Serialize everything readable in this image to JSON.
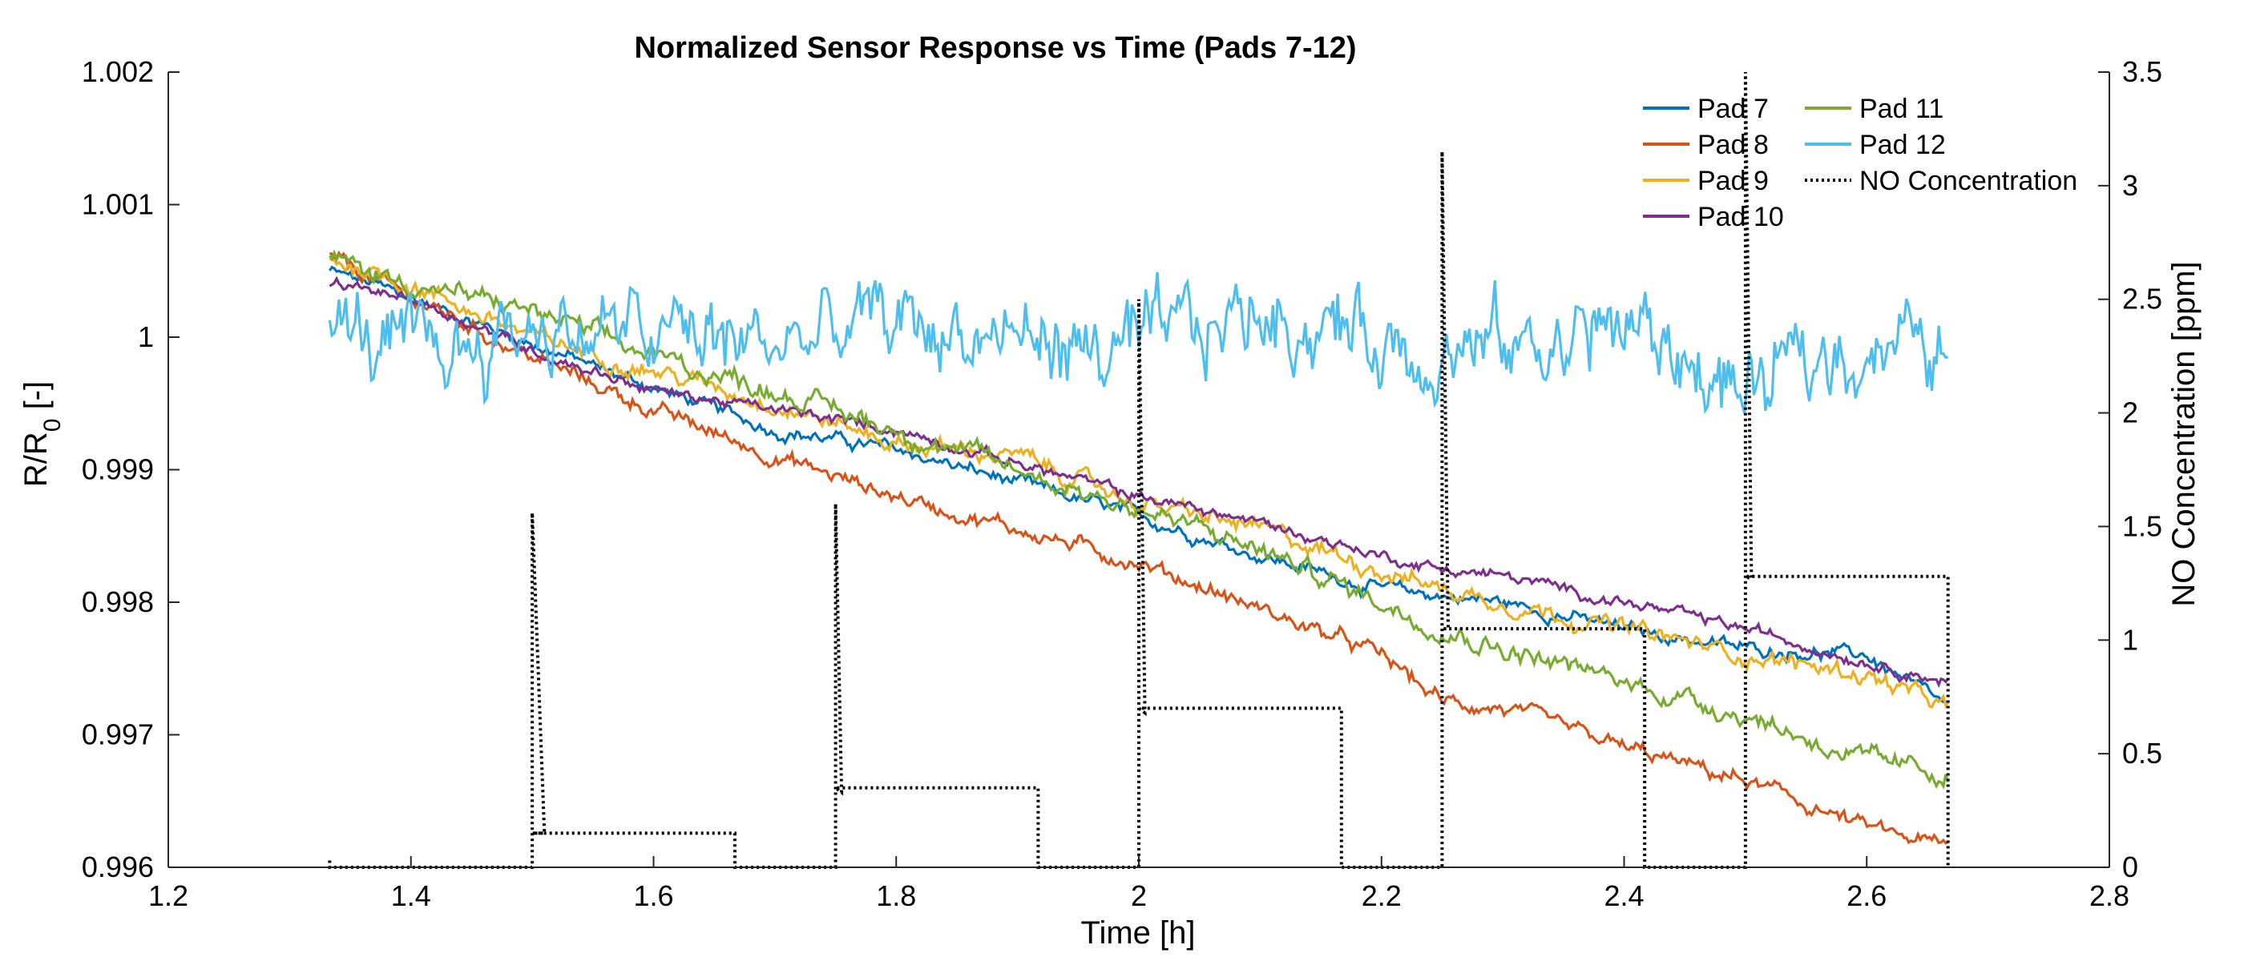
{
  "chart_data": {
    "type": "line",
    "title": "Normalized Sensor Response vs Time (Pads 7-12)",
    "xlabel": "Time [h]",
    "ylabel_left_main": "R/R",
    "ylabel_left_sub": "0",
    "ylabel_left_suffix": " [-]",
    "ylabel_right": "NO Concentration [ppm]",
    "xlim": [
      1.2,
      2.8
    ],
    "ylim_left": [
      0.996,
      1.002
    ],
    "ylim_right": [
      0,
      3.5
    ],
    "x_ticks": [
      "1.2",
      "1.4",
      "1.6",
      "1.8",
      "2",
      "2.2",
      "2.4",
      "2.6",
      "2.8"
    ],
    "y_left_ticks": [
      "0.996",
      "0.997",
      "0.998",
      "0.999",
      "1",
      "1.001",
      "1.002"
    ],
    "y_right_ticks": [
      "0",
      "0.5",
      "1",
      "1.5",
      "2",
      "2.5",
      "3",
      "3.5"
    ],
    "legend_position": "top-right",
    "grid": false,
    "series": [
      {
        "name": "Pad 7",
        "color": "#0072BD",
        "axis": "left",
        "x": [
          1.333,
          1.4,
          1.5,
          1.6,
          1.7,
          1.8,
          1.9,
          2.0,
          2.1,
          2.2,
          2.25,
          2.3,
          2.4,
          2.5,
          2.6,
          2.667
        ],
        "y": [
          1.0005,
          1.0003,
          0.99995,
          0.99962,
          0.9993,
          0.99915,
          0.9989,
          0.99865,
          0.99835,
          0.9981,
          0.99805,
          0.998,
          0.9978,
          0.99765,
          0.9976,
          0.9972
        ]
      },
      {
        "name": "Pad 8",
        "color": "#D95319",
        "axis": "left",
        "x": [
          1.333,
          1.4,
          1.5,
          1.6,
          1.7,
          1.8,
          1.9,
          2.0,
          2.1,
          2.2,
          2.25,
          2.3,
          2.4,
          2.5,
          2.6,
          2.667
        ],
        "y": [
          1.0006,
          1.0003,
          0.99985,
          0.99945,
          0.9991,
          0.9988,
          0.99855,
          0.9983,
          0.99795,
          0.9976,
          0.99725,
          0.9972,
          0.9969,
          0.99665,
          0.9963,
          0.99615
        ]
      },
      {
        "name": "Pad 9",
        "color": "#EDB120",
        "axis": "left",
        "x": [
          1.333,
          1.4,
          1.5,
          1.6,
          1.7,
          1.8,
          1.9,
          2.0,
          2.1,
          2.2,
          2.25,
          2.3,
          2.4,
          2.5,
          2.6,
          2.667
        ],
        "y": [
          1.0006,
          1.0004,
          1.0,
          0.99975,
          0.9995,
          0.9992,
          0.9991,
          0.99875,
          0.99855,
          0.99825,
          0.9981,
          0.998,
          0.9978,
          0.9976,
          0.99745,
          0.9972
        ]
      },
      {
        "name": "Pad 10",
        "color": "#7E2F8E",
        "axis": "left",
        "x": [
          1.333,
          1.4,
          1.5,
          1.6,
          1.7,
          1.8,
          1.9,
          2.0,
          2.1,
          2.2,
          2.25,
          2.3,
          2.4,
          2.5,
          2.6,
          2.667
        ],
        "y": [
          1.0004,
          1.0003,
          0.9999,
          0.9996,
          0.99945,
          0.9993,
          0.99905,
          0.9988,
          0.9986,
          0.99835,
          0.99825,
          0.9982,
          0.998,
          0.9978,
          0.99755,
          0.9974
        ]
      },
      {
        "name": "Pad 11",
        "color": "#77AC30",
        "axis": "left",
        "x": [
          1.333,
          1.4,
          1.5,
          1.6,
          1.7,
          1.8,
          1.9,
          2.0,
          2.1,
          2.2,
          2.25,
          2.3,
          2.4,
          2.5,
          2.6,
          2.667
        ],
        "y": [
          1.0006,
          1.0004,
          1.0002,
          0.99985,
          0.9996,
          0.9993,
          0.999,
          0.9987,
          0.9984,
          0.998,
          0.9978,
          0.99765,
          0.9974,
          0.99715,
          0.9968,
          0.9967
        ]
      },
      {
        "name": "Pad 12",
        "color": "#4DBEEE",
        "axis": "left",
        "x": [
          1.333,
          1.4,
          1.5,
          1.6,
          1.7,
          1.8,
          1.9,
          2.0,
          2.1,
          2.2,
          2.3,
          2.4,
          2.5,
          2.6,
          2.667
        ],
        "y": [
          1.0001,
          0.9998,
          1.0001,
          1.0,
          0.99995,
          1.0001,
          1.0,
          0.99985,
          1.0002,
          1.0,
          0.9999,
          1.0001,
          0.99955,
          1.0,
          0.99985
        ]
      },
      {
        "name": "NO Concentration",
        "color": "#000000",
        "axis": "right",
        "style": "dotted",
        "x": [
          1.333,
          1.333,
          1.5,
          1.5,
          1.5,
          1.51,
          1.51,
          1.5,
          1.667,
          1.667,
          1.75,
          1.75,
          1.75,
          1.755,
          1.755,
          1.75,
          1.917,
          1.917,
          2.0,
          2.0,
          2.0,
          2.005,
          2.005,
          2.0,
          2.167,
          2.167,
          2.25,
          2.25,
          2.25,
          2.255,
          2.255,
          2.25,
          2.417,
          2.417,
          2.5,
          2.5,
          2.5,
          2.505,
          2.505,
          2.5,
          2.667,
          2.667
        ],
        "y": [
          0.03,
          0.0,
          0.0,
          0.12,
          1.56,
          0.15,
          0.15,
          0.15,
          0.15,
          0.0,
          0.0,
          0.3,
          1.6,
          0.33,
          0.33,
          0.35,
          0.35,
          0.0,
          0.0,
          0.6,
          2.5,
          0.68,
          0.68,
          0.7,
          0.7,
          0.0,
          0.0,
          1.0,
          3.15,
          1.05,
          1.05,
          1.05,
          1.05,
          0.0,
          0.0,
          1.2,
          3.5,
          1.27,
          1.27,
          1.28,
          1.28,
          0.0
        ]
      }
    ]
  }
}
